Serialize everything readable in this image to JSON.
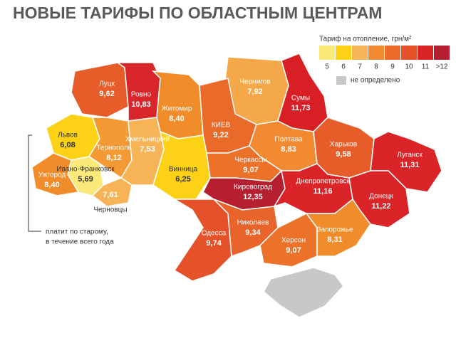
{
  "header": {
    "title": "НОВЫЕ ТАРИФЫ ПО ОБЛАСТНЫМ ЦЕНТРАМ"
  },
  "legend": {
    "title": "Тариф на отопление, грн/м²",
    "classes": [
      {
        "label": "5",
        "color": "#fbe97a"
      },
      {
        "label": "6",
        "color": "#fcd116"
      },
      {
        "label": "7",
        "color": "#f7b457"
      },
      {
        "label": "8",
        "color": "#f18a30"
      },
      {
        "label": "9",
        "color": "#ea6a2a"
      },
      {
        "label": "10",
        "color": "#e5522a"
      },
      {
        "label": "11",
        "color": "#da2427"
      },
      {
        "label": ">12",
        "color": "#b51f2f"
      }
    ],
    "undefined": {
      "label": "не определено",
      "color": "#c8c8c8"
    }
  },
  "annotation": {
    "lines": [
      "платит по старому,",
      "в течение всего года"
    ]
  },
  "regions": [
    {
      "name": "Луцк",
      "value": "9,62",
      "color": "#e75d2a"
    },
    {
      "name": "Ровно",
      "value": "10,83",
      "color": "#d9262a"
    },
    {
      "name": "Житомир",
      "value": "8,40",
      "color": "#f08c2a"
    },
    {
      "name": "Чернигов",
      "value": "7,92",
      "color": "#f5a84a"
    },
    {
      "name": "Сумы",
      "value": "11,73",
      "color": "#d81f26"
    },
    {
      "name": "КИЕВ",
      "value": "9,22",
      "color": "#ea6a2a"
    },
    {
      "name": "Львов",
      "value": "6,08",
      "color": "#fcd116"
    },
    {
      "name": "Тернополь",
      "value": "8,12",
      "color": "#f49a35"
    },
    {
      "name": "Хмельницкий",
      "value": "7,53",
      "color": "#f7b457"
    },
    {
      "name": "Полтава",
      "value": "8,83",
      "color": "#f18a30"
    },
    {
      "name": "Харьков",
      "value": "9,58",
      "color": "#e75d2a"
    },
    {
      "name": "Луганск",
      "value": "11,31",
      "color": "#da2427"
    },
    {
      "name": "Ивано-Франковск",
      "value": "5,69",
      "color": "#fbe97a"
    },
    {
      "name": "Ужгород",
      "value": "8,40",
      "color": "#f08c2a"
    },
    {
      "name": "Черновцы",
      "value": "7,61",
      "color": "#f7b457"
    },
    {
      "name": "Винница",
      "value": "6,25",
      "color": "#fcd116"
    },
    {
      "name": "Черкассы",
      "value": "9,07",
      "color": "#ec7229"
    },
    {
      "name": "Кировоград",
      "value": "12,35",
      "color": "#b51f2f"
    },
    {
      "name": "Днепропетровск",
      "value": "11,16",
      "color": "#da2427"
    },
    {
      "name": "Донецк",
      "value": "11,22",
      "color": "#da2427"
    },
    {
      "name": "Одесса",
      "value": "9,74",
      "color": "#e5522a"
    },
    {
      "name": "Николаев",
      "value": "9,34",
      "color": "#e8642a"
    },
    {
      "name": "Херсон",
      "value": "9,07",
      "color": "#ec7229"
    },
    {
      "name": "Запорожье",
      "value": "8,31",
      "color": "#f08c2a"
    }
  ]
}
